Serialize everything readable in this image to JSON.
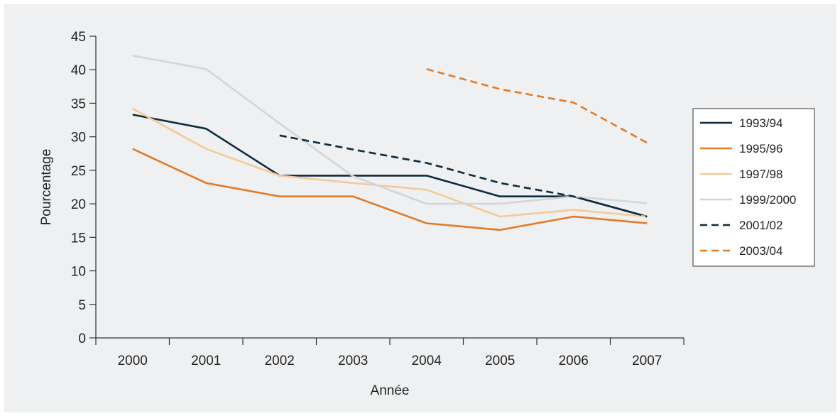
{
  "chart_data": {
    "type": "line",
    "title": "",
    "xlabel": "Année",
    "ylabel": "Pourcentage",
    "categories": [
      "2000",
      "2001",
      "2002",
      "2003",
      "2004",
      "2005",
      "2006",
      "2007"
    ],
    "ylim": [
      0,
      45
    ],
    "yticks": [
      0,
      5,
      10,
      15,
      20,
      25,
      30,
      35,
      40,
      45
    ],
    "grid": false,
    "legend_position": "right",
    "series": [
      {
        "name": "1993/94",
        "color": "#0d2b3e",
        "dash": "solid",
        "values": [
          33.3,
          31.2,
          24.2,
          24.2,
          24.2,
          21.1,
          21.1,
          18.1
        ]
      },
      {
        "name": "1995/96",
        "color": "#e07b2a",
        "dash": "solid",
        "values": [
          28.2,
          23.1,
          21.1,
          21.1,
          17.1,
          16.1,
          18.1,
          17.1
        ]
      },
      {
        "name": "1997/98",
        "color": "#f5c99a",
        "dash": "solid",
        "values": [
          34.2,
          28.2,
          24.2,
          23.1,
          22.1,
          18.1,
          19.1,
          18.1
        ]
      },
      {
        "name": "1999/2000",
        "color": "#d2d6d9",
        "dash": "solid",
        "values": [
          42.1,
          40.1,
          32.0,
          24.1,
          20.0,
          20.0,
          21.1,
          20.1
        ]
      },
      {
        "name": "2001/02",
        "color": "#0d2b3e",
        "dash": "dashed",
        "values": [
          null,
          null,
          30.2,
          28.1,
          26.1,
          23.1,
          21.1,
          18.1
        ]
      },
      {
        "name": "2003/04",
        "color": "#e07b2a",
        "dash": "dashed",
        "values": [
          null,
          null,
          null,
          null,
          40.1,
          37.1,
          35.1,
          29.1
        ]
      }
    ]
  }
}
